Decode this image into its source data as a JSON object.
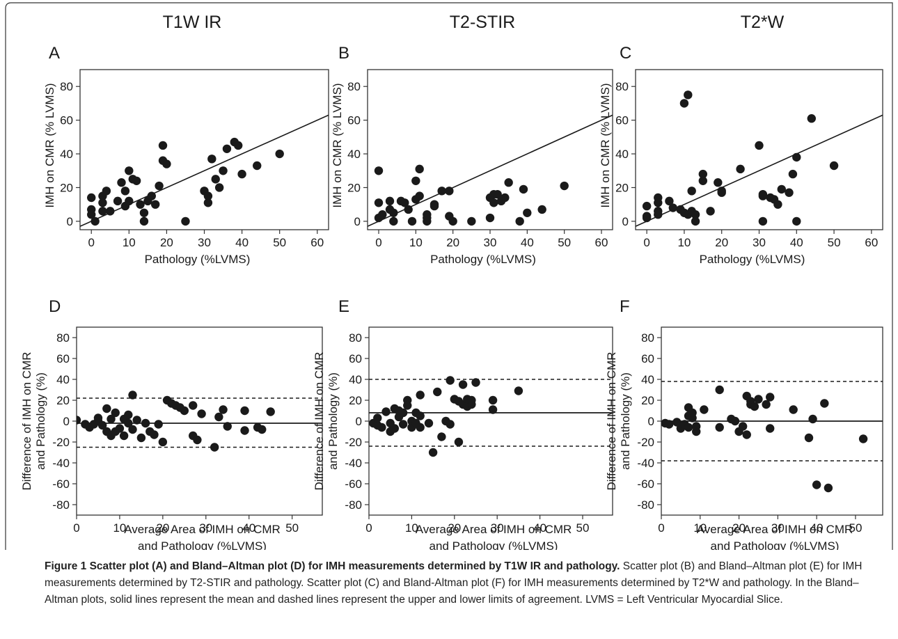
{
  "column_titles": [
    "T1W IR",
    "T2-STIR",
    "T2*W"
  ],
  "colors": {
    "marker": "#1a1a1a",
    "line": "#1a1a1a",
    "frame": "#333333"
  },
  "caption": {
    "bold": "Figure 1 Scatter plot (A) and Bland–Altman plot (D) for IMH measurements determined by T1W IR and pathology.",
    "rest": " Scatter plot (B) and Bland–Altman plot (E) for IMH measurements determined by T2-STIR and pathology. Scatter plot (C) and Bland-Altman plot (F) for IMH measurements determined by T2*W and pathology. In the Bland–Altman plots, solid lines represent the mean and dashed lines represent the upper and lower limits of agreement. LVMS = Left Ventricular Myocardial Slice."
  },
  "chart_data": [
    {
      "panel": "A",
      "type": "scatter",
      "xlabel": "Pathology (%LVMS)",
      "ylabel": "IMH on CMR (% LVMS)",
      "xlim": [
        -3,
        63
      ],
      "ylim": [
        -5,
        90
      ],
      "xticks": [
        0,
        10,
        20,
        30,
        40,
        50,
        60
      ],
      "yticks": [
        0,
        20,
        40,
        60,
        80
      ],
      "fit_line": {
        "slope": 1.0,
        "intercept": 0
      },
      "points": [
        [
          0,
          14
        ],
        [
          0,
          7
        ],
        [
          0,
          4
        ],
        [
          1,
          0
        ],
        [
          3,
          11
        ],
        [
          3,
          15
        ],
        [
          3,
          6
        ],
        [
          4,
          18
        ],
        [
          5,
          6
        ],
        [
          7,
          12
        ],
        [
          8,
          23
        ],
        [
          9,
          18
        ],
        [
          10,
          30
        ],
        [
          9,
          9
        ],
        [
          10,
          12
        ],
        [
          11,
          25
        ],
        [
          12,
          24
        ],
        [
          13,
          10
        ],
        [
          14,
          5
        ],
        [
          14,
          0
        ],
        [
          15,
          12
        ],
        [
          16,
          15
        ],
        [
          17,
          10
        ],
        [
          18,
          21
        ],
        [
          19,
          45
        ],
        [
          19,
          36
        ],
        [
          20,
          34
        ],
        [
          25,
          0
        ],
        [
          30,
          18
        ],
        [
          31,
          11
        ],
        [
          31,
          15
        ],
        [
          32,
          37
        ],
        [
          33,
          25
        ],
        [
          34,
          20
        ],
        [
          35,
          30
        ],
        [
          36,
          43
        ],
        [
          38,
          47
        ],
        [
          39,
          45
        ],
        [
          40,
          28
        ],
        [
          44,
          33
        ],
        [
          50,
          40
        ]
      ]
    },
    {
      "panel": "B",
      "type": "scatter",
      "xlabel": "Pathology (%LVMS)",
      "ylabel": "IMH on CMR (% LVMS)",
      "xlim": [
        -3,
        63
      ],
      "ylim": [
        -5,
        90
      ],
      "xticks": [
        0,
        10,
        20,
        30,
        40,
        50,
        60
      ],
      "yticks": [
        0,
        20,
        40,
        60,
        80
      ],
      "fit_line": {
        "slope": 1.0,
        "intercept": 0
      },
      "points": [
        [
          0,
          30
        ],
        [
          0,
          11
        ],
        [
          0,
          2
        ],
        [
          1,
          4
        ],
        [
          3,
          12
        ],
        [
          3,
          7
        ],
        [
          4,
          5
        ],
        [
          4,
          0
        ],
        [
          6,
          12
        ],
        [
          7,
          11
        ],
        [
          8,
          7
        ],
        [
          9,
          0
        ],
        [
          10,
          13
        ],
        [
          10,
          24
        ],
        [
          11,
          31
        ],
        [
          11,
          15
        ],
        [
          13,
          4
        ],
        [
          13,
          2
        ],
        [
          13,
          0
        ],
        [
          15,
          10
        ],
        [
          15,
          9
        ],
        [
          17,
          18
        ],
        [
          19,
          18
        ],
        [
          19,
          3
        ],
        [
          20,
          0
        ],
        [
          25,
          0
        ],
        [
          30,
          14
        ],
        [
          30,
          2
        ],
        [
          31,
          16
        ],
        [
          31,
          11
        ],
        [
          32,
          16
        ],
        [
          33,
          12
        ],
        [
          34,
          14
        ],
        [
          35,
          23
        ],
        [
          38,
          0
        ],
        [
          39,
          19
        ],
        [
          40,
          5
        ],
        [
          44,
          7
        ],
        [
          50,
          21
        ]
      ]
    },
    {
      "panel": "C",
      "type": "scatter",
      "xlabel": "Pathology (%LVMS)",
      "ylabel": "IMH on CMR (% LVMS)",
      "xlim": [
        -3,
        63
      ],
      "ylim": [
        -5,
        90
      ],
      "xticks": [
        0,
        10,
        20,
        30,
        40,
        50,
        60
      ],
      "yticks": [
        0,
        20,
        40,
        60,
        80
      ],
      "fit_line": {
        "slope": 1.0,
        "intercept": 0
      },
      "points": [
        [
          0,
          3
        ],
        [
          0,
          2
        ],
        [
          0,
          9
        ],
        [
          3,
          14
        ],
        [
          3,
          11
        ],
        [
          3,
          6
        ],
        [
          3,
          4
        ],
        [
          6,
          12
        ],
        [
          7,
          8
        ],
        [
          9,
          7
        ],
        [
          10,
          70
        ],
        [
          10,
          5
        ],
        [
          11,
          75
        ],
        [
          11,
          4
        ],
        [
          12,
          6
        ],
        [
          13,
          4
        ],
        [
          13,
          0
        ],
        [
          15,
          24
        ],
        [
          15,
          28
        ],
        [
          17,
          6
        ],
        [
          19,
          23
        ],
        [
          20,
          18
        ],
        [
          20,
          17
        ],
        [
          25,
          31
        ],
        [
          30,
          45
        ],
        [
          31,
          16
        ],
        [
          31,
          15
        ],
        [
          31,
          0
        ],
        [
          33,
          14
        ],
        [
          34,
          13
        ],
        [
          35,
          10
        ],
        [
          36,
          19
        ],
        [
          38,
          17
        ],
        [
          39,
          28
        ],
        [
          40,
          38
        ],
        [
          40,
          0
        ],
        [
          44,
          61
        ],
        [
          50,
          33
        ],
        [
          12,
          18
        ]
      ]
    },
    {
      "panel": "D",
      "type": "scatter",
      "xlabel": "Average Area of IMH on CMR and Pathology (%LVMS)",
      "ylabel": "Difference of IMH on CMR and Pathology (%)",
      "xlim": [
        0,
        57
      ],
      "ylim": [
        -90,
        90
      ],
      "xticks": [
        0,
        10,
        20,
        30,
        40,
        50
      ],
      "yticks": [
        -80,
        -60,
        -40,
        -20,
        0,
        20,
        40,
        60,
        80
      ],
      "mean": -2,
      "limits": [
        22,
        -25
      ],
      "points": [
        [
          0,
          1
        ],
        [
          2,
          -3
        ],
        [
          3,
          -6
        ],
        [
          4,
          -3
        ],
        [
          5,
          0
        ],
        [
          5,
          3
        ],
        [
          6,
          -4
        ],
        [
          7,
          -10
        ],
        [
          7,
          12
        ],
        [
          8,
          -14
        ],
        [
          8,
          2
        ],
        [
          9,
          -10
        ],
        [
          9,
          8
        ],
        [
          10,
          -7
        ],
        [
          11,
          -14
        ],
        [
          11,
          2
        ],
        [
          12,
          6
        ],
        [
          12,
          -2
        ],
        [
          13,
          25
        ],
        [
          13,
          -8
        ],
        [
          14,
          1
        ],
        [
          15,
          -16
        ],
        [
          16,
          -2
        ],
        [
          17,
          -10
        ],
        [
          18,
          -13
        ],
        [
          19,
          -3
        ],
        [
          20,
          -20
        ],
        [
          21,
          20
        ],
        [
          22,
          17
        ],
        [
          23,
          15
        ],
        [
          24,
          13
        ],
        [
          25,
          10
        ],
        [
          27,
          -14
        ],
        [
          27,
          15
        ],
        [
          28,
          -18
        ],
        [
          29,
          7
        ],
        [
          32,
          -25
        ],
        [
          33,
          4
        ],
        [
          34,
          11
        ],
        [
          35,
          -5
        ],
        [
          39,
          10
        ],
        [
          39,
          -9
        ],
        [
          42,
          -6
        ],
        [
          43,
          -8
        ],
        [
          45,
          9
        ]
      ]
    },
    {
      "panel": "E",
      "type": "scatter",
      "xlabel": "Average Area of IMH on CMR and Pathology (%LVMS)",
      "ylabel": "Difference of IMH on CMR and Pathology (%)",
      "xlim": [
        0,
        57
      ],
      "ylim": [
        -90,
        90
      ],
      "xticks": [
        0,
        10,
        20,
        30,
        40,
        50
      ],
      "yticks": [
        -80,
        -60,
        -40,
        -20,
        0,
        20,
        40,
        60,
        80
      ],
      "mean": 8,
      "limits": [
        40,
        -24
      ],
      "points": [
        [
          1,
          -2
        ],
        [
          2,
          -4
        ],
        [
          2,
          3
        ],
        [
          3,
          -6
        ],
        [
          4,
          9
        ],
        [
          5,
          -2
        ],
        [
          5,
          -10
        ],
        [
          6,
          12
        ],
        [
          6,
          -7
        ],
        [
          7,
          4
        ],
        [
          7,
          10
        ],
        [
          8,
          -3
        ],
        [
          8,
          8
        ],
        [
          9,
          20
        ],
        [
          9,
          15
        ],
        [
          10,
          -6
        ],
        [
          10,
          0
        ],
        [
          11,
          -2
        ],
        [
          11,
          8
        ],
        [
          12,
          -6
        ],
        [
          12,
          5
        ],
        [
          12,
          25
        ],
        [
          14,
          -2
        ],
        [
          15,
          -30
        ],
        [
          16,
          28
        ],
        [
          17,
          -15
        ],
        [
          18,
          0
        ],
        [
          19,
          -3
        ],
        [
          19,
          39
        ],
        [
          20,
          21
        ],
        [
          21,
          -20
        ],
        [
          21,
          19
        ],
        [
          22,
          35
        ],
        [
          22,
          16
        ],
        [
          23,
          21
        ],
        [
          23,
          14
        ],
        [
          24,
          16
        ],
        [
          24,
          20
        ],
        [
          25,
          37
        ],
        [
          29,
          20
        ],
        [
          29,
          11
        ],
        [
          35,
          29
        ]
      ]
    },
    {
      "panel": "F",
      "type": "scatter",
      "xlabel": "Average Area of IMH on CMR and Pathology (%LVMS)",
      "ylabel": "Difference of IMH on CMR and Pathology (%)",
      "xlim": [
        0,
        57
      ],
      "ylim": [
        -90,
        90
      ],
      "xticks": [
        0,
        10,
        20,
        30,
        40,
        50
      ],
      "yticks": [
        -80,
        -60,
        -40,
        -20,
        0,
        20,
        40,
        60,
        80
      ],
      "mean": 0,
      "limits": [
        38,
        -38
      ],
      "points": [
        [
          1,
          -2
        ],
        [
          2,
          -3
        ],
        [
          4,
          -1
        ],
        [
          5,
          -7
        ],
        [
          6,
          -3
        ],
        [
          7,
          13
        ],
        [
          7,
          5
        ],
        [
          7,
          -6
        ],
        [
          8,
          8
        ],
        [
          8,
          3
        ],
        [
          9,
          -10
        ],
        [
          9,
          -5
        ],
        [
          11,
          11
        ],
        [
          15,
          30
        ],
        [
          15,
          -6
        ],
        [
          18,
          2
        ],
        [
          19,
          0
        ],
        [
          20,
          -10
        ],
        [
          21,
          -5
        ],
        [
          22,
          -13
        ],
        [
          22,
          24
        ],
        [
          23,
          16
        ],
        [
          23,
          19
        ],
        [
          24,
          14
        ],
        [
          25,
          21
        ],
        [
          27,
          16
        ],
        [
          28,
          23
        ],
        [
          28,
          -7
        ],
        [
          34,
          11
        ],
        [
          38,
          -16
        ],
        [
          39,
          2
        ],
        [
          40,
          -61
        ],
        [
          42,
          17
        ],
        [
          43,
          -64
        ],
        [
          52,
          -17
        ]
      ]
    }
  ]
}
